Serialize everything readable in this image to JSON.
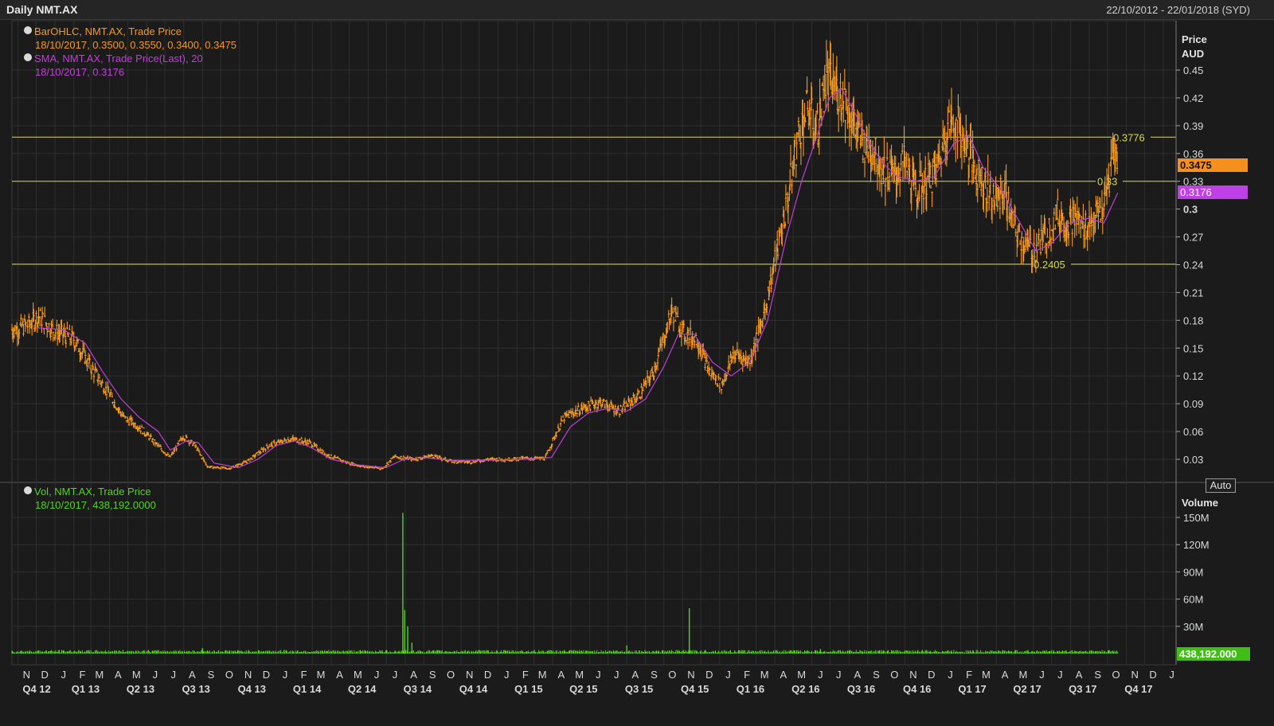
{
  "window": {
    "title": "Daily NMT.AX",
    "date_range": "22/10/2012 - 22/01/2018 (SYD)"
  },
  "price_panel": {
    "legend": {
      "ohlc_label": "BarOHLC, NMT.AX, Trade Price",
      "ohlc_values": "18/10/2017, 0.3500, 0.3550, 0.3400, 0.3475",
      "sma_label": "SMA, NMT.AX, Trade Price(Last),  20",
      "sma_values": "18/10/2017, 0.3176"
    },
    "axis_title_1": "Price",
    "axis_title_2": "AUD",
    "last_price_label": "0.3475",
    "sma_last_label": "0.3176",
    "auto_label": "Auto"
  },
  "volume_panel": {
    "legend": {
      "label": "Vol, NMT.AX, Trade Price",
      "values": "18/10/2017, 438,192.0000"
    },
    "axis_title": "Volume",
    "last_volume_label": "438,192.000",
    "auto_label": "Auto"
  },
  "colors": {
    "background": "#1b1b1b",
    "grid": "#2e2e2e",
    "price_bars": "#f39a1e",
    "sma": "#c13fd6",
    "hlines": "#d8d84a",
    "volume": "#52d41c",
    "last_price_box": "#f5901e",
    "sma_box": "#c040e8",
    "volume_box": "#3fbf14"
  },
  "chart_data": [
    {
      "type": "line",
      "title": "",
      "ylabel": "Price AUD",
      "ylim": [
        0.0,
        0.48
      ],
      "yticks": [
        "0.03",
        "0.06",
        "0.09",
        "0.12",
        "0.15",
        "0.18",
        "0.21",
        "0.24",
        "0.27",
        "0.3",
        "0.33",
        "0.36",
        "0.39",
        "0.42",
        "0.45"
      ],
      "x_months": [
        "N",
        "D",
        "J",
        "F",
        "M",
        "A",
        "M",
        "J",
        "J",
        "A",
        "S",
        "O",
        "N",
        "D",
        "J",
        "F",
        "M",
        "A",
        "M",
        "J",
        "J",
        "A",
        "S",
        "O",
        "N",
        "D",
        "J",
        "F",
        "M",
        "A",
        "M",
        "J",
        "J",
        "A",
        "S",
        "O",
        "N",
        "D",
        "J",
        "F",
        "M",
        "A",
        "M",
        "J",
        "J",
        "A",
        "S",
        "O",
        "N",
        "D",
        "J",
        "F",
        "M",
        "A",
        "M",
        "J",
        "J",
        "A",
        "S",
        "O",
        "N",
        "D",
        "J"
      ],
      "x_quarters": [
        "Q4 12",
        "Q1 13",
        "Q2 13",
        "Q3 13",
        "Q4 13",
        "Q1 14",
        "Q2 14",
        "Q3 14",
        "Q4 14",
        "Q1 15",
        "Q2 15",
        "Q3 15",
        "Q4 15",
        "Q1 16",
        "Q2 16",
        "Q3 16",
        "Q4 16",
        "Q1 17",
        "Q2 17",
        "Q3 17",
        "Q4 17"
      ],
      "series": [
        {
          "name": "BarOHLC, NMT.AX, Trade Price",
          "kind": "close_approx",
          "points": [
            [
              "2012-10-22",
              0.17
            ],
            [
              "2012-11-20",
              0.175
            ],
            [
              "2012-12-05",
              0.185
            ],
            [
              "2013-01-01",
              0.168
            ],
            [
              "2013-02-01",
              0.16
            ],
            [
              "2013-03-01",
              0.13
            ],
            [
              "2013-04-01",
              0.1
            ],
            [
              "2013-04-25",
              0.075
            ],
            [
              "2013-05-20",
              0.065
            ],
            [
              "2013-06-15",
              0.048
            ],
            [
              "2013-07-10",
              0.032
            ],
            [
              "2013-08-01",
              0.055
            ],
            [
              "2013-08-20",
              0.045
            ],
            [
              "2013-09-10",
              0.022
            ],
            [
              "2013-10-15",
              0.02
            ],
            [
              "2013-11-15",
              0.028
            ],
            [
              "2013-12-20",
              0.045
            ],
            [
              "2014-01-25",
              0.052
            ],
            [
              "2014-02-25",
              0.048
            ],
            [
              "2014-03-25",
              0.035
            ],
            [
              "2014-04-25",
              0.027
            ],
            [
              "2014-05-25",
              0.022
            ],
            [
              "2014-06-25",
              0.02
            ],
            [
              "2014-07-15",
              0.033
            ],
            [
              "2014-08-15",
              0.03
            ],
            [
              "2014-09-15",
              0.034
            ],
            [
              "2014-10-15",
              0.028
            ],
            [
              "2014-11-15",
              0.027
            ],
            [
              "2014-12-15",
              0.03
            ],
            [
              "2015-01-15",
              0.03
            ],
            [
              "2015-02-15",
              0.031
            ],
            [
              "2015-03-20",
              0.031
            ],
            [
              "2015-04-05",
              0.055
            ],
            [
              "2015-04-20",
              0.075
            ],
            [
              "2015-05-20",
              0.085
            ],
            [
              "2015-06-20",
              0.092
            ],
            [
              "2015-07-20",
              0.082
            ],
            [
              "2015-08-20",
              0.098
            ],
            [
              "2015-09-15",
              0.125
            ],
            [
              "2015-10-01",
              0.16
            ],
            [
              "2015-10-15",
              0.19
            ],
            [
              "2015-11-05",
              0.165
            ],
            [
              "2015-11-25",
              0.16
            ],
            [
              "2015-12-15",
              0.125
            ],
            [
              "2016-01-05",
              0.11
            ],
            [
              "2016-01-25",
              0.145
            ],
            [
              "2016-02-20",
              0.135
            ],
            [
              "2016-03-10",
              0.175
            ],
            [
              "2016-03-25",
              0.22
            ],
            [
              "2016-04-10",
              0.27
            ],
            [
              "2016-04-25",
              0.32
            ],
            [
              "2016-05-10",
              0.38
            ],
            [
              "2016-05-25",
              0.41
            ],
            [
              "2016-06-10",
              0.385
            ],
            [
              "2016-06-25",
              0.44
            ],
            [
              "2016-07-10",
              0.43
            ],
            [
              "2016-07-25",
              0.42
            ],
            [
              "2016-08-10",
              0.39
            ],
            [
              "2016-08-25",
              0.37
            ],
            [
              "2016-09-10",
              0.365
            ],
            [
              "2016-09-25",
              0.345
            ],
            [
              "2016-10-15",
              0.335
            ],
            [
              "2016-11-01",
              0.35
            ],
            [
              "2016-11-20",
              0.32
            ],
            [
              "2016-12-10",
              0.33
            ],
            [
              "2016-12-25",
              0.345
            ],
            [
              "2017-01-10",
              0.39
            ],
            [
              "2017-01-25",
              0.395
            ],
            [
              "2017-02-10",
              0.37
            ],
            [
              "2017-02-25",
              0.345
            ],
            [
              "2017-03-15",
              0.325
            ],
            [
              "2017-03-30",
              0.31
            ],
            [
              "2017-04-15",
              0.32
            ],
            [
              "2017-04-30",
              0.28
            ],
            [
              "2017-05-15",
              0.265
            ],
            [
              "2017-06-01",
              0.255
            ],
            [
              "2017-06-20",
              0.27
            ],
            [
              "2017-07-10",
              0.295
            ],
            [
              "2017-07-25",
              0.285
            ],
            [
              "2017-08-10",
              0.29
            ],
            [
              "2017-08-25",
              0.28
            ],
            [
              "2017-09-10",
              0.29
            ],
            [
              "2017-09-25",
              0.3
            ],
            [
              "2017-10-05",
              0.335
            ],
            [
              "2017-10-12",
              0.37
            ],
            [
              "2017-10-18",
              0.3475
            ]
          ]
        },
        {
          "name": "SMA, NMT.AX, Trade Price(Last),  20",
          "kind": "sma",
          "points": [
            [
              "2012-12-01",
              0.172
            ],
            [
              "2013-01-15",
              0.17
            ],
            [
              "2013-02-20",
              0.155
            ],
            [
              "2013-03-20",
              0.125
            ],
            [
              "2013-04-20",
              0.095
            ],
            [
              "2013-05-20",
              0.075
            ],
            [
              "2013-06-20",
              0.06
            ],
            [
              "2013-07-10",
              0.04
            ],
            [
              "2013-08-05",
              0.05
            ],
            [
              "2013-08-25",
              0.048
            ],
            [
              "2013-09-20",
              0.026
            ],
            [
              "2013-10-30",
              0.021
            ],
            [
              "2013-12-01",
              0.03
            ],
            [
              "2014-01-01",
              0.045
            ],
            [
              "2014-02-01",
              0.05
            ],
            [
              "2014-03-01",
              0.042
            ],
            [
              "2014-04-01",
              0.03
            ],
            [
              "2014-05-15",
              0.024
            ],
            [
              "2014-06-30",
              0.021
            ],
            [
              "2014-07-30",
              0.03
            ],
            [
              "2014-09-01",
              0.032
            ],
            [
              "2014-10-15",
              0.029
            ],
            [
              "2014-12-15",
              0.029
            ],
            [
              "2015-02-15",
              0.03
            ],
            [
              "2015-03-30",
              0.032
            ],
            [
              "2015-04-30",
              0.065
            ],
            [
              "2015-05-30",
              0.08
            ],
            [
              "2015-07-01",
              0.085
            ],
            [
              "2015-08-01",
              0.082
            ],
            [
              "2015-09-01",
              0.095
            ],
            [
              "2015-10-01",
              0.13
            ],
            [
              "2015-10-25",
              0.165
            ],
            [
              "2015-11-20",
              0.165
            ],
            [
              "2015-12-20",
              0.135
            ],
            [
              "2016-01-20",
              0.12
            ],
            [
              "2016-02-20",
              0.135
            ],
            [
              "2016-03-20",
              0.18
            ],
            [
              "2016-04-20",
              0.27
            ],
            [
              "2016-05-15",
              0.33
            ],
            [
              "2016-06-10",
              0.38
            ],
            [
              "2016-06-30",
              0.42
            ],
            [
              "2016-07-20",
              0.43
            ],
            [
              "2016-08-10",
              0.405
            ],
            [
              "2016-09-01",
              0.375
            ],
            [
              "2016-09-25",
              0.35
            ],
            [
              "2016-10-20",
              0.335
            ],
            [
              "2016-11-20",
              0.33
            ],
            [
              "2016-12-20",
              0.335
            ],
            [
              "2017-01-20",
              0.37
            ],
            [
              "2017-02-15",
              0.38
            ],
            [
              "2017-03-10",
              0.345
            ],
            [
              "2017-04-10",
              0.32
            ],
            [
              "2017-05-10",
              0.285
            ],
            [
              "2017-06-05",
              0.255
            ],
            [
              "2017-06-30",
              0.262
            ],
            [
              "2017-07-30",
              0.285
            ],
            [
              "2017-08-30",
              0.29
            ],
            [
              "2017-09-25",
              0.285
            ],
            [
              "2017-10-18",
              0.3176
            ]
          ]
        }
      ],
      "horizontal_lines": [
        {
          "value": 0.3776,
          "label": "0.3776"
        },
        {
          "value": 0.33,
          "label": "0.33"
        },
        {
          "value": 0.2405,
          "label": "0.2405"
        }
      ]
    },
    {
      "type": "bar",
      "ylabel": "Volume",
      "ylim": [
        0,
        165000000
      ],
      "yticks": [
        "30M",
        "60M",
        "90M",
        "120M",
        "150M"
      ],
      "series": [
        {
          "name": "Vol, NMT.AX, Trade Price",
          "points": [
            [
              "2014-07-28",
              155000000
            ],
            [
              "2014-07-31",
              48000000
            ],
            [
              "2014-08-05",
              30000000
            ],
            [
              "2014-08-12",
              12000000
            ],
            [
              "2015-11-12",
              50000000
            ],
            [
              "2016-06-15",
              5000000
            ],
            [
              "2013-09-01",
              6000000
            ],
            [
              "2015-08-01",
              9000000
            ],
            [
              "2017-10-18",
              438192
            ]
          ],
          "baseline": 2500000
        }
      ]
    }
  ]
}
